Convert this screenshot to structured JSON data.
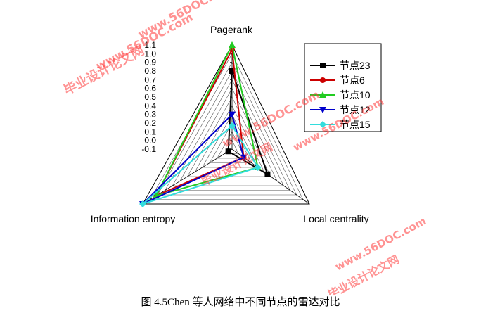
{
  "chart_data": {
    "type": "radar",
    "axes": [
      "Pagerank",
      "Local centrality",
      "Information entropy"
    ],
    "r_ticks": [
      "-0.1",
      "0.0",
      "0.1",
      "0.2",
      "0.3",
      "0.4",
      "0.5",
      "0.6",
      "0.7",
      "0.8",
      "0.9",
      "1.0",
      "1.1"
    ],
    "r_range": [
      -0.1,
      1.1
    ],
    "grid": true,
    "legend_position": "top-right",
    "series": [
      {
        "name": "节点23",
        "color": "#000000",
        "marker": "square",
        "values": [
          0.8,
          0.45,
          -0.05
        ]
      },
      {
        "name": "节点6",
        "color": "#cc0000",
        "marker": "circle",
        "values": [
          1.05,
          0.08,
          0.92
        ]
      },
      {
        "name": "节点10",
        "color": "#22cc22",
        "marker": "triangle-up",
        "values": [
          1.1,
          0.3,
          0.92
        ]
      },
      {
        "name": "节点12",
        "color": "#0000cc",
        "marker": "triangle-down",
        "values": [
          0.3,
          0.08,
          1.1
        ]
      },
      {
        "name": "节点15",
        "color": "#33dddd",
        "marker": "diamond",
        "values": [
          0.17,
          0.3,
          1.1
        ]
      }
    ]
  },
  "caption": "图 4.5Chen 等人网络中不同节点的雷达对比",
  "watermarks": [
    "毕业设计论文网",
    "www.56DOC.com"
  ]
}
